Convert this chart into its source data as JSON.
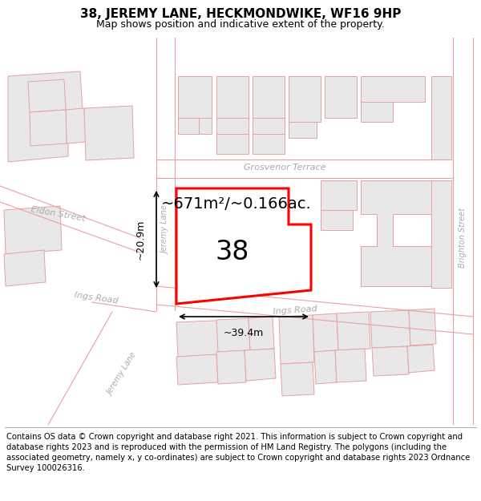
{
  "title": "38, JEREMY LANE, HECKMONDWIKE, WF16 9HP",
  "subtitle": "Map shows position and indicative extent of the property.",
  "footer": "Contains OS data © Crown copyright and database right 2021. This information is subject to Crown copyright and database rights 2023 and is reproduced with the permission of HM Land Registry. The polygons (including the associated geometry, namely x, y co-ordinates) are subject to Crown copyright and database rights 2023 Ordnance Survey 100026316.",
  "bg_color": "#ffffff",
  "building_fill": "#e8e8e8",
  "building_stroke": "#e8a0a0",
  "road_outline": "#e8a0a0",
  "highlight_fill": "#ffffff",
  "highlight_stroke": "#ff0000",
  "area_label": "~671m²/~0.166ac.",
  "plot_number": "38",
  "dim_width": "~39.4m",
  "dim_height": "~20.9m",
  "title_fontsize": 11,
  "subtitle_fontsize": 9,
  "footer_fontsize": 7.2,
  "label_color": "#aaaaaa",
  "label_fontsize": 8
}
